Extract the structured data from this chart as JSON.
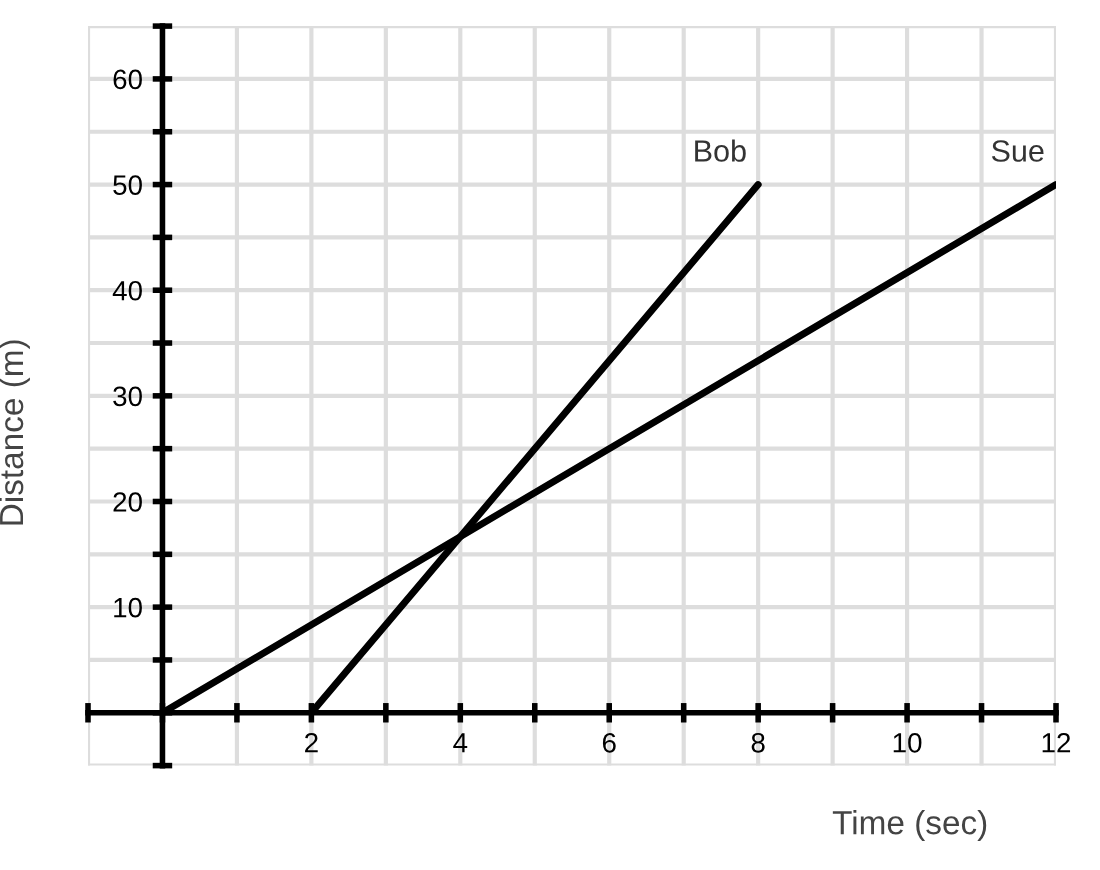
{
  "chart_data": {
    "type": "line",
    "xlabel": "Time (sec)",
    "ylabel": "Distance (m)",
    "xlim": [
      -1,
      12
    ],
    "ylim": [
      -5,
      65
    ],
    "xticks": [
      {
        "value": -1,
        "label": null
      },
      {
        "value": 0,
        "label": null
      },
      {
        "value": 1,
        "label": null
      },
      2,
      {
        "value": 3,
        "label": null
      },
      4,
      {
        "value": 5,
        "label": null
      },
      6,
      {
        "value": 7,
        "label": null
      },
      8,
      {
        "value": 9,
        "label": null
      },
      10,
      {
        "value": 11,
        "label": null
      },
      12
    ],
    "yticks": [
      {
        "value": -5,
        "label": null
      },
      {
        "value": 0,
        "label": null
      },
      {
        "value": 5,
        "label": null
      },
      10,
      {
        "value": 15,
        "label": null
      },
      20,
      {
        "value": 25,
        "label": null
      },
      30,
      {
        "value": 35,
        "label": null
      },
      40,
      {
        "value": 45,
        "label": null
      },
      50,
      {
        "value": 55,
        "label": null
      },
      60,
      {
        "value": 65,
        "label": null
      }
    ],
    "grid": true,
    "line_style": "solid",
    "series": [
      {
        "name": "Bob",
        "color": "#000000",
        "x": [
          2,
          8
        ],
        "values": [
          0,
          50
        ]
      },
      {
        "name": "Sue",
        "color": "#000000",
        "x": [
          0,
          12
        ],
        "values": [
          0,
          50
        ]
      }
    ]
  }
}
